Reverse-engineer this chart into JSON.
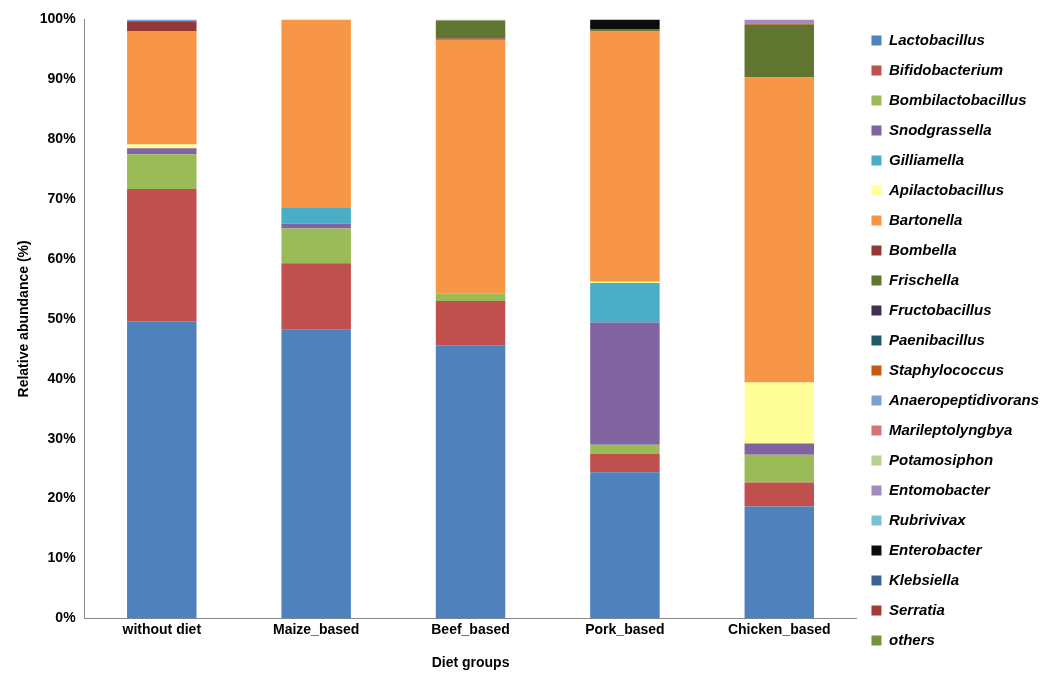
{
  "chart_data": {
    "type": "bar",
    "stacked": true,
    "xlabel": "Diet groups",
    "ylabel": "Relative abundance (%)",
    "categories": [
      "without diet",
      "Maize_based",
      "Beef_based",
      "Pork_based",
      "Chicken_based"
    ],
    "series": [
      {
        "name": "Lactobacillus",
        "color": "#4f81bd",
        "values": [
          49.6,
          48.2,
          45.5,
          24.4,
          18.7
        ]
      },
      {
        "name": "Bifidobacterium",
        "color": "#c0504d",
        "values": [
          22.1,
          11.1,
          7.5,
          3.1,
          4.0
        ]
      },
      {
        "name": "Bombilactobacillus",
        "color": "#9bbb59",
        "values": [
          5.8,
          5.8,
          1.3,
          1.5,
          4.6
        ]
      },
      {
        "name": "Snodgrassella",
        "color": "#8064a2",
        "values": [
          1.0,
          0.8,
          0,
          20.4,
          1.9
        ]
      },
      {
        "name": "Gilliamella",
        "color": "#4bacc6",
        "values": [
          0,
          2.6,
          0,
          6.6,
          0
        ]
      },
      {
        "name": "Apilactobacillus",
        "color": "#ffff99",
        "values": [
          0.6,
          0,
          0,
          0.2,
          10.2
        ]
      },
      {
        "name": "Bartonella",
        "color": "#f79646",
        "values": [
          18.9,
          31.5,
          42.3,
          41.8,
          50.9
        ]
      },
      {
        "name": "Bombella",
        "color": "#953735",
        "values": [
          1.7,
          0,
          0.2,
          0,
          0
        ]
      },
      {
        "name": "Frischella",
        "color": "#5f7530",
        "values": [
          0,
          0,
          3.0,
          0.3,
          8.8
        ]
      },
      {
        "name": "Fructobacillus",
        "color": "#3f3151",
        "values": [
          0,
          0,
          0,
          0,
          0
        ]
      },
      {
        "name": "Paenibacillus",
        "color": "#215968",
        "values": [
          0,
          0,
          0,
          0,
          0
        ]
      },
      {
        "name": "Staphylococcus",
        "color": "#c65911",
        "values": [
          0,
          0,
          0,
          0,
          0.2
        ]
      },
      {
        "name": "Anaeropeptidivorans",
        "color": "#7ba0d4",
        "values": [
          0.3,
          0,
          0,
          0,
          0
        ]
      },
      {
        "name": "Marileptolyngbya",
        "color": "#d47472",
        "values": [
          0,
          0,
          0,
          0,
          0
        ]
      },
      {
        "name": "Potamosiphon",
        "color": "#b6d08f",
        "values": [
          0,
          0,
          0.2,
          0,
          0
        ]
      },
      {
        "name": "Entomobacter",
        "color": "#a08cbf",
        "values": [
          0,
          0,
          0,
          0,
          0.7
        ]
      },
      {
        "name": "Rubrivivax",
        "color": "#78c0d4",
        "values": [
          0,
          0,
          0,
          0,
          0
        ]
      },
      {
        "name": "Enterobacter",
        "color": "#0c0c0c",
        "values": [
          0,
          0,
          0,
          1.7,
          0
        ]
      },
      {
        "name": "Klebsiella",
        "color": "#3a6496",
        "values": [
          0,
          0,
          0,
          0,
          0
        ]
      },
      {
        "name": "Serratia",
        "color": "#a33b38",
        "values": [
          0,
          0,
          0,
          0,
          0
        ]
      },
      {
        "name": "others",
        "color": "#77933c",
        "values": [
          0,
          0,
          0,
          0,
          0
        ]
      }
    ],
    "ylim": [
      0,
      100
    ],
    "yticks": [
      {
        "value": 0,
        "label": "0%"
      },
      {
        "value": 10,
        "label": "10%"
      },
      {
        "value": 20,
        "label": "20%"
      },
      {
        "value": 30,
        "label": "30%"
      },
      {
        "value": 40,
        "label": "40%"
      },
      {
        "value": 50,
        "label": "50%"
      },
      {
        "value": 60,
        "label": "60%"
      },
      {
        "value": 70,
        "label": "70%"
      },
      {
        "value": 80,
        "label": "80%"
      },
      {
        "value": 90,
        "label": "90%"
      },
      {
        "value": 100,
        "label": "100%"
      }
    ],
    "grid": false,
    "legend": "right"
  }
}
